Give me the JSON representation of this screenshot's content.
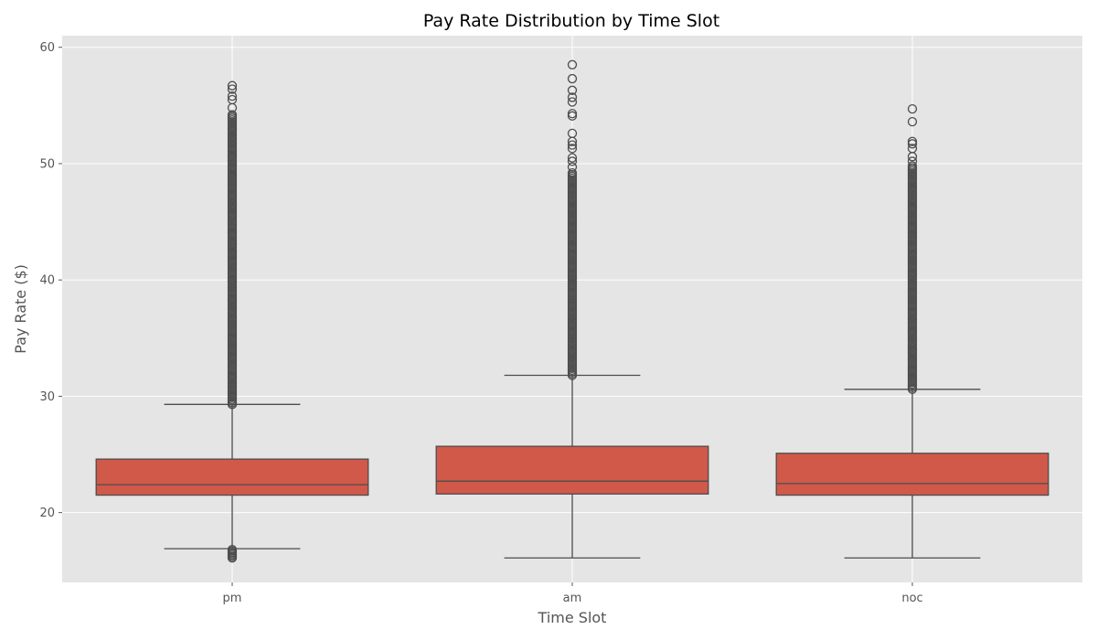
{
  "chart_data": {
    "type": "box",
    "title": "Pay Rate Distribution by Time Slot",
    "xlabel": "Time Slot",
    "ylabel": "Pay Rate ($)",
    "ylim": [
      14,
      61
    ],
    "yticks": [
      20,
      30,
      40,
      50,
      60
    ],
    "grid": true,
    "colors": {
      "box": "#d0594a",
      "line": "#4d4d4d",
      "panel": "#e5e5e5",
      "grid": "#ffffff"
    },
    "categories": [
      "pm",
      "am",
      "noc"
    ],
    "boxes": [
      {
        "category": "pm",
        "whisker_low": 16.9,
        "q1": 21.5,
        "median": 22.4,
        "q3": 24.6,
        "whisker_high": 29.3,
        "outliers_high_range": [
          29.3,
          54.3
        ],
        "outliers_high_sparse": [
          54.8,
          55.5,
          55.8,
          56.4,
          56.7
        ],
        "outliers_low_range": [
          16.1,
          16.9
        ]
      },
      {
        "category": "am",
        "whisker_low": 16.1,
        "q1": 21.6,
        "median": 22.7,
        "q3": 25.7,
        "whisker_high": 31.8,
        "outliers_high_range": [
          31.8,
          49.2
        ],
        "outliers_high_sparse": [
          49.7,
          50.2,
          50.5,
          51.3,
          51.6,
          51.9,
          52.6,
          54.1,
          54.3,
          55.3,
          55.7,
          56.3,
          57.3,
          58.5
        ],
        "outliers_low_range": []
      },
      {
        "category": "noc",
        "whisker_low": 16.1,
        "q1": 21.5,
        "median": 22.5,
        "q3": 25.1,
        "whisker_high": 30.6,
        "outliers_high_range": [
          30.6,
          49.8
        ],
        "outliers_high_sparse": [
          50.2,
          50.6,
          51.3,
          51.7,
          51.9,
          53.6,
          54.7
        ],
        "outliers_low_range": []
      }
    ]
  }
}
